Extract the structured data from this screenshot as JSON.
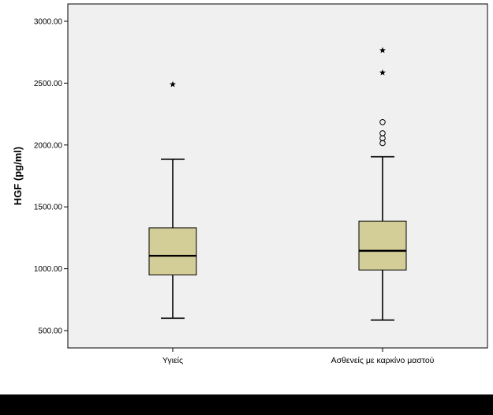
{
  "chart_data": {
    "type": "boxplot",
    "ylabel": "HGF (pg/ml)",
    "xlabel": "",
    "ylim": [
      360,
      3140
    ],
    "yticks": [
      500,
      1000,
      1500,
      2000,
      2500,
      3000
    ],
    "ytick_labels": [
      "500.00",
      "1000.00",
      "1500.00",
      "2000.00",
      "2500.00",
      "3000.00"
    ],
    "categories": [
      "Υγιείς",
      "Ασθενείς με καρκίνο μαστού"
    ],
    "boxes": [
      {
        "category": "Υγιείς",
        "whisker_low": 600,
        "q1": 950,
        "median": 1105,
        "q3": 1330,
        "whisker_high": 1885,
        "outliers": [],
        "extremes": [
          2490
        ]
      },
      {
        "category": "Ασθενείς με καρκίνο μαστού",
        "whisker_low": 585,
        "q1": 990,
        "median": 1145,
        "q3": 1385,
        "whisker_high": 1905,
        "outliers": [
          2015,
          2055,
          2095,
          2185
        ],
        "extremes": [
          2585,
          2765
        ]
      }
    ],
    "grid": false,
    "colors": {
      "plot_background": "#f0f0f0",
      "box_fill": "#d3ce97",
      "line": "#000000",
      "frame": "#000000",
      "footer": "#000000"
    }
  }
}
